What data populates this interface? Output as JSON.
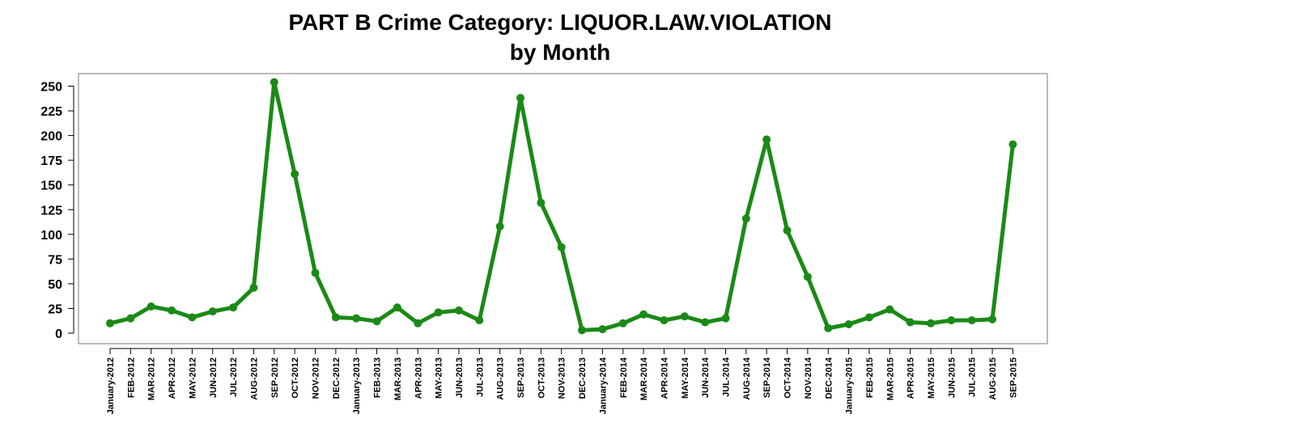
{
  "chart_data": {
    "type": "line",
    "title_line1": "PART B Crime Category:  LIQUOR.LAW.VIOLATION",
    "title_line2": "by Month",
    "xlabel": "",
    "ylabel": "",
    "ylim": [
      0,
      250
    ],
    "yticks": [
      0,
      25,
      50,
      75,
      100,
      125,
      150,
      175,
      200,
      225,
      250
    ],
    "grid": false,
    "legend": "none",
    "line_color": "#1a8a16",
    "categories": [
      "January-2012",
      "FEB-2012",
      "MAR-2012",
      "APR-2012",
      "MAY-2012",
      "JUN-2012",
      "JUL-2012",
      "AUG-2012",
      "SEP-2012",
      "OCT-2012",
      "NOV-2012",
      "DEC-2012",
      "January-2013",
      "FEB-2013",
      "MAR-2013",
      "APR-2013",
      "MAY-2013",
      "JUN-2013",
      "JUL-2013",
      "AUG-2013",
      "SEP-2013",
      "OCT-2013",
      "NOV-2013",
      "DEC-2013",
      "January-2014",
      "FEB-2014",
      "MAR-2014",
      "APR-2014",
      "MAY-2014",
      "JUN-2014",
      "JUL-2014",
      "AUG-2014",
      "SEP-2014",
      "OCT-2014",
      "NOV-2014",
      "DEC-2014",
      "January-2015",
      "FEB-2015",
      "MAR-2015",
      "APR-2015",
      "MAY-2015",
      "JUN-2015",
      "JUL-2015",
      "AUG-2015",
      "SEP-2015"
    ],
    "values": [
      10,
      15,
      27,
      23,
      16,
      22,
      26,
      46,
      254,
      161,
      61,
      16,
      15,
      12,
      26,
      10,
      21,
      23,
      13,
      108,
      238,
      132,
      87,
      3,
      4,
      10,
      19,
      13,
      17,
      11,
      15,
      116,
      196,
      104,
      57,
      5,
      9,
      16,
      24,
      11,
      10,
      13,
      13,
      14,
      191
    ]
  }
}
